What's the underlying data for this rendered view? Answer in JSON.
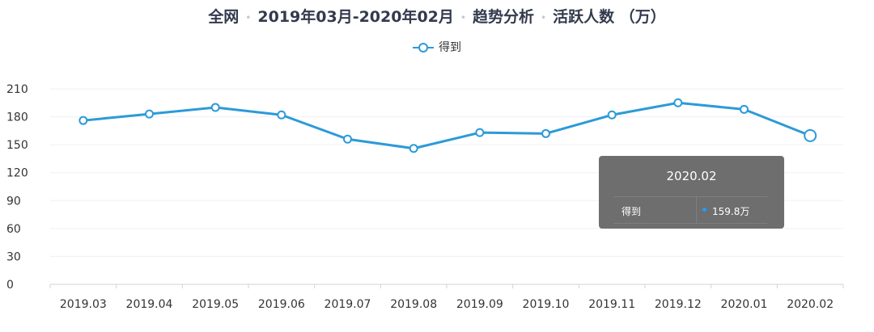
{
  "header": {
    "scope": "全网",
    "period": "2019年03月-2020年02月",
    "analysis": "趋势分析",
    "metric": "活跃人数 （万）"
  },
  "chart_data": {
    "type": "line",
    "categories": [
      "2019.03",
      "2019.04",
      "2019.05",
      "2019.06",
      "2019.07",
      "2019.08",
      "2019.09",
      "2019.10",
      "2019.11",
      "2019.12",
      "2020.01",
      "2020.02"
    ],
    "series": [
      {
        "name": "得到",
        "values": [
          176,
          183,
          190,
          182,
          156,
          146,
          163,
          162,
          182,
          195,
          188,
          159.8
        ]
      }
    ],
    "ylim": [
      0,
      210
    ],
    "yticks": [
      0,
      30,
      60,
      90,
      120,
      150,
      180,
      210
    ],
    "grid": true,
    "legend_position": "top-center",
    "line_color": "#2c9ad8",
    "highlight_index": 11
  },
  "tooltip": {
    "title": "2020.02",
    "series_name": "得到",
    "value_text": "159.8万"
  }
}
